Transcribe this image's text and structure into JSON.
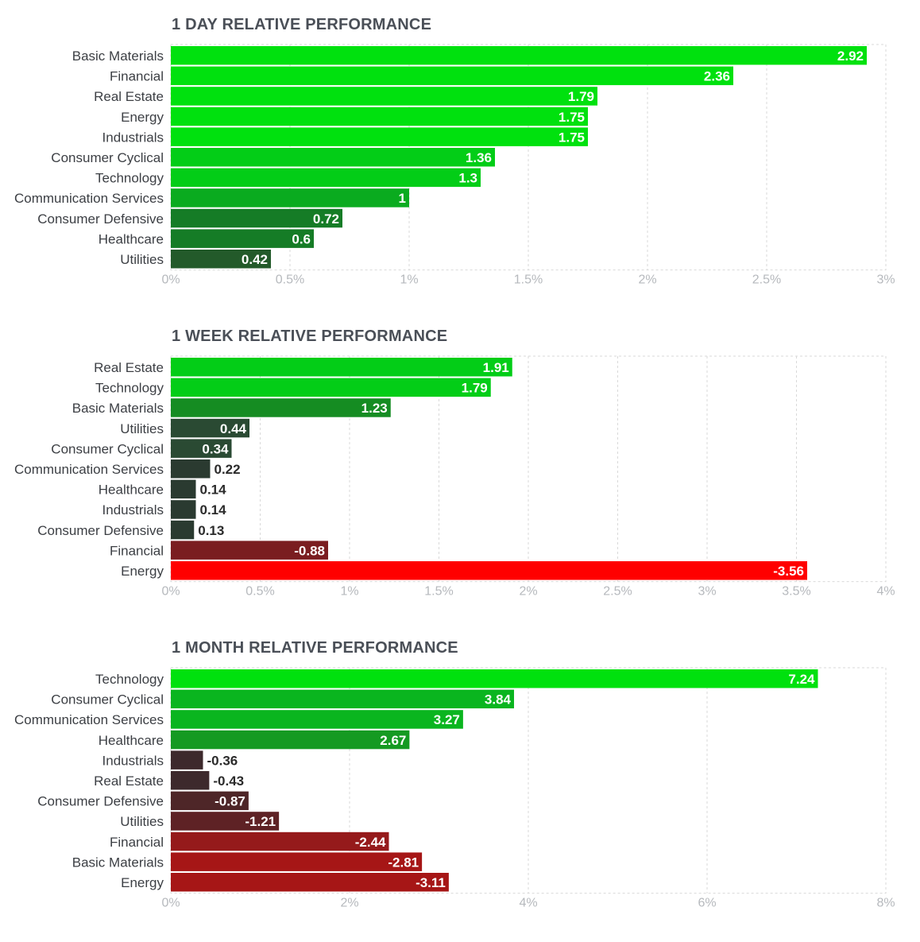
{
  "chart_data": [
    {
      "type": "bar",
      "orientation": "horizontal",
      "title": "1 DAY RELATIVE PERFORMANCE",
      "categories": [
        "Basic Materials",
        "Financial",
        "Real Estate",
        "Energy",
        "Industrials",
        "Consumer Cyclical",
        "Technology",
        "Communication Services",
        "Consumer Defensive",
        "Healthcare",
        "Utilities"
      ],
      "values": [
        2.92,
        2.36,
        1.79,
        1.75,
        1.75,
        1.36,
        1.3,
        1,
        0.72,
        0.6,
        0.42
      ],
      "value_labels": [
        "2.92",
        "2.36",
        "1.79",
        "1.75",
        "1.75",
        "1.36",
        "1.3",
        "1",
        "0.72",
        "0.6",
        "0.42"
      ],
      "xlim": [
        0,
        3
      ],
      "ticks": [
        0,
        0.5,
        1,
        1.5,
        2,
        2.5,
        3
      ],
      "tick_labels": [
        "0%",
        "0.5%",
        "1%",
        "1.5%",
        "2%",
        "2.5%",
        "3%"
      ],
      "bar_colors": [
        "#00e10e",
        "#00e10e",
        "#00e10e",
        "#00e10e",
        "#00e10e",
        "#03cd17",
        "#03cd17",
        "#0aab1f",
        "#157c26",
        "#157c26",
        "#235a2a"
      ],
      "grid": true
    },
    {
      "type": "bar",
      "orientation": "horizontal",
      "title": "1 WEEK RELATIVE PERFORMANCE",
      "categories": [
        "Real Estate",
        "Technology",
        "Basic Materials",
        "Utilities",
        "Consumer Cyclical",
        "Communication Services",
        "Healthcare",
        "Industrials",
        "Consumer Defensive",
        "Financial",
        "Energy"
      ],
      "values": [
        1.91,
        1.79,
        1.23,
        0.44,
        0.34,
        0.22,
        0.14,
        0.14,
        0.13,
        -0.88,
        -3.56
      ],
      "value_labels": [
        "1.91",
        "1.79",
        "1.23",
        "0.44",
        "0.34",
        "0.22",
        "0.14",
        "0.14",
        "0.13",
        "-0.88",
        "-3.56"
      ],
      "xlim": [
        0,
        4
      ],
      "ticks": [
        0,
        0.5,
        1,
        1.5,
        2,
        2.5,
        3,
        3.5,
        4
      ],
      "tick_labels": [
        "0%",
        "0.5%",
        "1%",
        "1.5%",
        "2%",
        "2.5%",
        "3%",
        "3.5%",
        "4%"
      ],
      "bar_colors": [
        "#03cd17",
        "#03cd17",
        "#158c22",
        "#2a4a33",
        "#2a4a33",
        "#2a3a30",
        "#2a3a30",
        "#2a3a30",
        "#2a3a30",
        "#7a1d20",
        "#ff0000"
      ],
      "grid": true
    },
    {
      "type": "bar",
      "orientation": "horizontal",
      "title": "1 MONTH RELATIVE PERFORMANCE",
      "categories": [
        "Technology",
        "Consumer Cyclical",
        "Communication Services",
        "Healthcare",
        "Industrials",
        "Real Estate",
        "Consumer Defensive",
        "Utilities",
        "Financial",
        "Basic Materials",
        "Energy"
      ],
      "values": [
        7.24,
        3.84,
        3.27,
        2.67,
        -0.36,
        -0.43,
        -0.87,
        -1.21,
        -2.44,
        -2.81,
        -3.11
      ],
      "value_labels": [
        "7.24",
        "3.84",
        "3.27",
        "2.67",
        "-0.36",
        "-0.43",
        "-0.87",
        "-1.21",
        "-2.44",
        "-2.81",
        "-3.11"
      ],
      "xlim": [
        0,
        8
      ],
      "ticks": [
        0,
        2,
        4,
        6,
        8
      ],
      "tick_labels": [
        "0%",
        "2%",
        "4%",
        "6%",
        "8%"
      ],
      "bar_colors": [
        "#00e10e",
        "#0ab51f",
        "#0ab51f",
        "#159a22",
        "#3d292c",
        "#3d292c",
        "#4e2628",
        "#5e2225",
        "#951a1b",
        "#a61616",
        "#a61616"
      ],
      "grid": true
    }
  ]
}
